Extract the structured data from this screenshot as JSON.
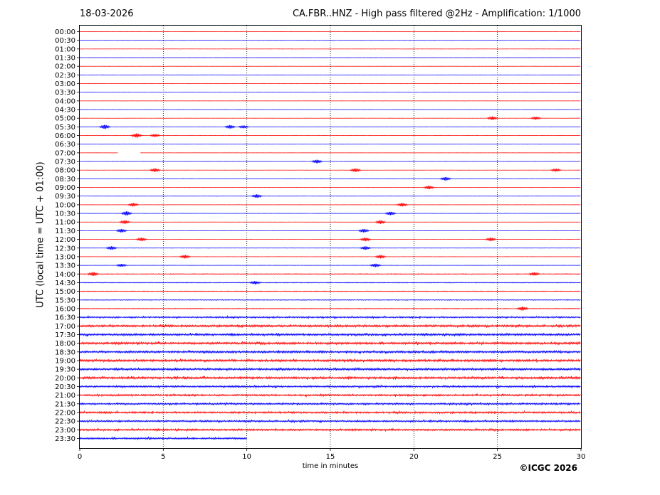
{
  "header": {
    "date": "18-03-2026",
    "title": "CA.FBR..HNZ - High pass filtered @2Hz - Amplification: 1/1000"
  },
  "footer": {
    "copyright": "©ICGC 2026"
  },
  "colors": {
    "odd_trace": "#ff0000",
    "even_trace": "#0000ff",
    "grid": "#000000"
  },
  "chart_data": {
    "type": "line",
    "xlabel": "time in minutes",
    "ylabel": "UTC (local time = UTC + 01:00)",
    "xlim": [
      0,
      30
    ],
    "x_ticks": [
      0,
      5,
      10,
      15,
      20,
      25,
      30
    ],
    "grid": "vertical dotted at x ticks",
    "rows": [
      "00:00",
      "00:30",
      "01:00",
      "01:30",
      "02:00",
      "02:30",
      "03:00",
      "03:30",
      "04:00",
      "04:30",
      "05:00",
      "05:30",
      "06:00",
      "06:30",
      "07:00",
      "07:30",
      "08:00",
      "08:30",
      "09:00",
      "09:30",
      "10:00",
      "10:30",
      "11:00",
      "11:30",
      "12:00",
      "12:30",
      "13:00",
      "13:30",
      "14:00",
      "14:30",
      "15:00",
      "15:30",
      "16:00",
      "16:30",
      "17:00",
      "17:30",
      "18:00",
      "18:30",
      "19:00",
      "19:30",
      "20:00",
      "20:30",
      "21:00",
      "21:30",
      "22:00",
      "22:30",
      "23:00",
      "23:30"
    ],
    "row_colors": "alternating red (00:00, 01:00, ...) and blue (00:30, 01:30, ...)",
    "last_row_end_minute": 10,
    "gaps": [
      {
        "row": "07:00",
        "from": 2.3,
        "to": 3.6
      }
    ],
    "events": [
      {
        "row": "05:00",
        "t": 24.7,
        "amp": 0.5
      },
      {
        "row": "05:00",
        "t": 27.3,
        "amp": 0.4
      },
      {
        "row": "05:30",
        "t": 1.5,
        "amp": 0.6
      },
      {
        "row": "05:30",
        "t": 9.0,
        "amp": 0.5
      },
      {
        "row": "05:30",
        "t": 9.8,
        "amp": 0.4
      },
      {
        "row": "06:00",
        "t": 3.4,
        "amp": 0.6
      },
      {
        "row": "06:00",
        "t": 4.5,
        "amp": 0.4
      },
      {
        "row": "07:30",
        "t": 14.2,
        "amp": 0.5
      },
      {
        "row": "08:00",
        "t": 4.5,
        "amp": 0.5
      },
      {
        "row": "08:00",
        "t": 16.5,
        "amp": 0.5
      },
      {
        "row": "08:00",
        "t": 28.5,
        "amp": 0.4
      },
      {
        "row": "08:30",
        "t": 21.9,
        "amp": 0.5
      },
      {
        "row": "09:00",
        "t": 20.9,
        "amp": 0.5
      },
      {
        "row": "09:30",
        "t": 10.6,
        "amp": 0.5
      },
      {
        "row": "10:00",
        "t": 3.2,
        "amp": 0.5
      },
      {
        "row": "10:00",
        "t": 19.3,
        "amp": 0.5
      },
      {
        "row": "10:30",
        "t": 2.8,
        "amp": 0.6
      },
      {
        "row": "10:30",
        "t": 18.6,
        "amp": 0.5
      },
      {
        "row": "11:00",
        "t": 2.7,
        "amp": 0.5
      },
      {
        "row": "11:00",
        "t": 18.0,
        "amp": 0.5
      },
      {
        "row": "11:30",
        "t": 2.5,
        "amp": 0.5
      },
      {
        "row": "11:30",
        "t": 17.0,
        "amp": 0.5
      },
      {
        "row": "12:00",
        "t": 3.7,
        "amp": 0.5
      },
      {
        "row": "12:00",
        "t": 17.1,
        "amp": 0.5
      },
      {
        "row": "12:00",
        "t": 24.6,
        "amp": 0.5
      },
      {
        "row": "12:30",
        "t": 1.9,
        "amp": 0.5
      },
      {
        "row": "12:30",
        "t": 17.1,
        "amp": 0.5
      },
      {
        "row": "13:00",
        "t": 6.3,
        "amp": 0.5
      },
      {
        "row": "13:00",
        "t": 18.0,
        "amp": 0.5
      },
      {
        "row": "13:30",
        "t": 2.5,
        "amp": 0.4
      },
      {
        "row": "13:30",
        "t": 17.7,
        "amp": 0.5
      },
      {
        "row": "14:00",
        "t": 0.8,
        "amp": 0.5
      },
      {
        "row": "14:00",
        "t": 27.2,
        "amp": 0.4
      },
      {
        "row": "14:30",
        "t": 10.5,
        "amp": 0.4
      },
      {
        "row": "16:00",
        "t": 26.5,
        "amp": 0.5
      }
    ]
  }
}
